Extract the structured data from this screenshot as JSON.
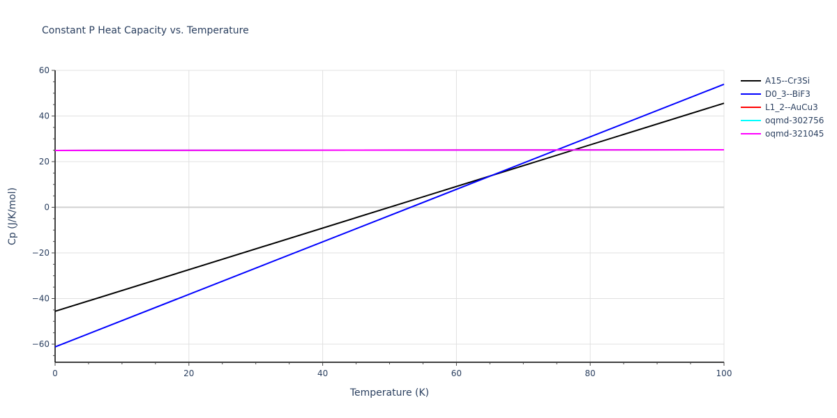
{
  "chart_data": {
    "type": "line",
    "title": "Constant P Heat Capacity vs. Temperature",
    "xlabel": "Temperature (K)",
    "ylabel": "Cp (J/K/mol)",
    "xlim": [
      0,
      100
    ],
    "ylim": [
      -68,
      60
    ],
    "x_ticks": [
      0,
      20,
      40,
      60,
      80,
      100
    ],
    "y_ticks": [
      -60,
      -40,
      -20,
      0,
      20,
      40,
      60
    ],
    "y_tick_labels": [
      "−60",
      "−40",
      "−20",
      "0",
      "20",
      "40",
      "60"
    ],
    "grid": true,
    "legend_position": "right",
    "series": [
      {
        "name": "A15--Cr3Si",
        "color": "#000000",
        "x": [
          0,
          100
        ],
        "values": [
          -45.6,
          45.6
        ]
      },
      {
        "name": "D0_3--BiF3",
        "color": "#0000ff",
        "x": [
          0,
          100
        ],
        "values": [
          -61.2,
          53.9
        ]
      },
      {
        "name": "L1_2--AuCu3",
        "color": "#ff0000",
        "x": [
          0,
          100
        ],
        "values": [
          24.9,
          25.2
        ]
      },
      {
        "name": "oqmd-302756",
        "color": "#00ffff",
        "x": [
          0,
          100
        ],
        "values": [
          24.9,
          25.2
        ]
      },
      {
        "name": "oqmd-321045",
        "color": "#ff00ff",
        "x": [
          0,
          100
        ],
        "values": [
          24.9,
          25.2
        ]
      }
    ]
  }
}
